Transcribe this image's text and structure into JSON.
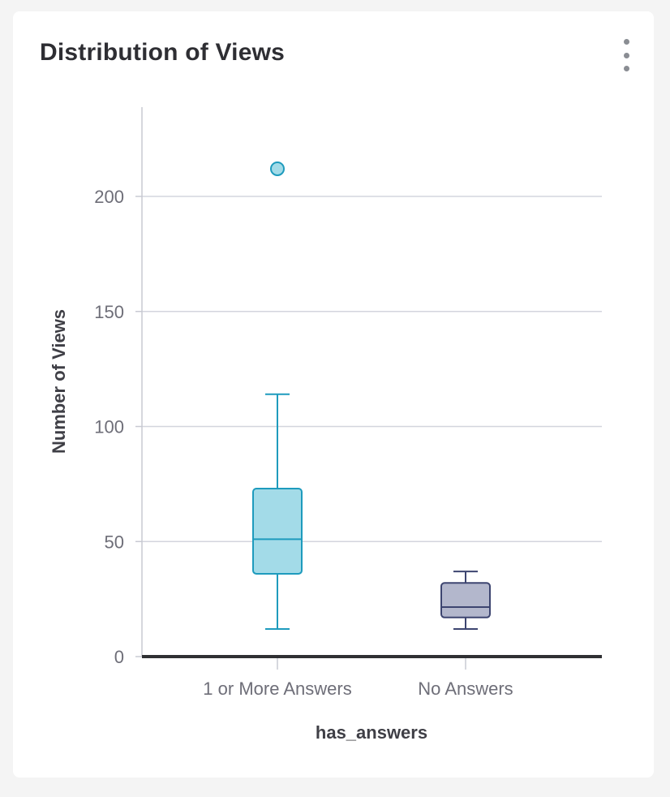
{
  "card": {
    "title": "Distribution of Views",
    "menu_icon": "more-vertical-icon"
  },
  "chart_data": {
    "type": "box",
    "title": "Distribution of Views",
    "xlabel": "has_answers",
    "ylabel": "Number of Views",
    "ylim": [
      0,
      230
    ],
    "yticks": [
      "0",
      "50",
      "100",
      "150",
      "200"
    ],
    "ytick_values": [
      0,
      50,
      100,
      150,
      200
    ],
    "grid": true,
    "categories": [
      "1 or More Answers",
      "No Answers"
    ],
    "boxes": [
      {
        "category": "1 or More Answers",
        "min": 12,
        "q1": 36,
        "median": 51,
        "q3": 73,
        "max": 114,
        "outliers": [
          212
        ],
        "color": "#a3dbe8",
        "stroke": "#1e9bbd"
      },
      {
        "category": "No Answers",
        "min": 12,
        "q1": 17,
        "median": 21.5,
        "q3": 32,
        "max": 37,
        "outliers": [],
        "color": "#b3b7cc",
        "stroke": "#3d4570"
      }
    ]
  }
}
